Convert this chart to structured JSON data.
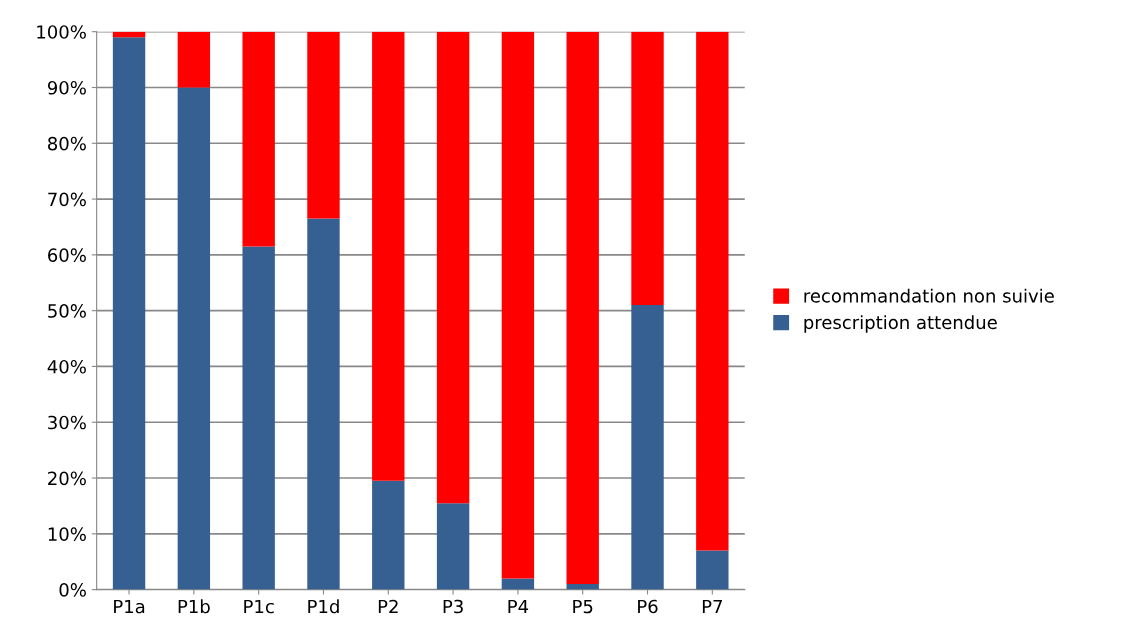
{
  "chart_data": {
    "type": "bar",
    "stacked": true,
    "categories": [
      "P1a",
      "P1b",
      "P1c",
      "P1d",
      "P2",
      "P3",
      "P4",
      "P5",
      "P6",
      "P7"
    ],
    "series": [
      {
        "name": "prescription attendue",
        "color": "#376092",
        "values": [
          99,
          90,
          61.5,
          66.5,
          19.5,
          15.5,
          2,
          1,
          51,
          7
        ]
      },
      {
        "name": "recommandation non suivie",
        "color": "#ff0000",
        "values": [
          1,
          10,
          38.5,
          33.5,
          80.5,
          84.5,
          98,
          99,
          49,
          93
        ]
      }
    ],
    "ylim": [
      0,
      100
    ],
    "yticks": [
      {
        "value": 0,
        "label": "0%"
      },
      {
        "value": 10,
        "label": "10%"
      },
      {
        "value": 20,
        "label": "20%"
      },
      {
        "value": 30,
        "label": "30%"
      },
      {
        "value": 40,
        "label": "40%"
      },
      {
        "value": 50,
        "label": "50%"
      },
      {
        "value": 60,
        "label": "60%"
      },
      {
        "value": 70,
        "label": "70%"
      },
      {
        "value": 80,
        "label": "80%"
      },
      {
        "value": 90,
        "label": "90%"
      },
      {
        "value": 100,
        "label": "100%"
      }
    ],
    "grid": "y",
    "legend": "right"
  }
}
